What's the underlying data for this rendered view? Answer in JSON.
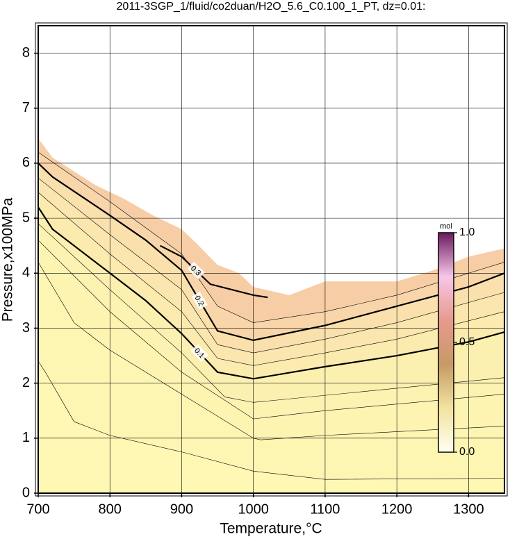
{
  "chart_data": {
    "type": "contour",
    "title": "2011-3SGP_1/fluid/co2duan/H2O_5.6_C0.100_1_PT, dz=0.01:",
    "x_label": "Temperature,°C",
    "y_label": "Pressure,x100MPa",
    "xlim": [
      700,
      1350
    ],
    "ylim": [
      0,
      8.5
    ],
    "xticks": [
      700,
      800,
      900,
      1000,
      1100,
      1200,
      1300
    ],
    "yticks": [
      0,
      1,
      2,
      3,
      4,
      5,
      6,
      7,
      8
    ],
    "grid": true,
    "background": "#ffffff",
    "series": [
      {
        "x": [
          700,
          720,
          750,
          780,
          820,
          860,
          900,
          920,
          950,
          980,
          1000,
          1050,
          1100,
          1200,
          1250,
          1300,
          1350
        ],
        "values": [
          6.45,
          6.1,
          5.85,
          5.6,
          5.35,
          5.05,
          4.8,
          4.55,
          4.15,
          4.0,
          3.75,
          3.6,
          3.85,
          3.85,
          4.05,
          4.3,
          4.45
        ],
        "fill": "#f7cda5"
      },
      {
        "x": [
          700,
          800,
          900,
          950,
          1000,
          1100,
          1200,
          1350
        ],
        "values": [
          6.2,
          5.3,
          4.35,
          3.4,
          3.1,
          3.3,
          3.6,
          4.2
        ],
        "fill": "#f8d6a9",
        "color": "#000000",
        "width": 0.6
      },
      {
        "name": "0.2",
        "x": [
          700,
          720,
          800,
          850,
          900,
          950,
          1000,
          1100,
          1200,
          1300,
          1350
        ],
        "values": [
          6.0,
          5.75,
          5.05,
          4.6,
          4.05,
          2.95,
          2.78,
          3.05,
          3.4,
          3.75,
          4.0
        ],
        "fill": "#f9e0ac",
        "color": "#000000",
        "width": 2.2
      },
      {
        "x": [
          700,
          800,
          900,
          950,
          1000,
          1100,
          1200,
          1350
        ],
        "values": [
          5.73,
          4.7,
          3.7,
          2.7,
          2.55,
          2.8,
          3.1,
          3.65
        ],
        "fill": "#fae6ae",
        "color": "#000000",
        "width": 0.6
      },
      {
        "x": [
          700,
          800,
          900,
          950,
          1000,
          1100,
          1200,
          1350
        ],
        "values": [
          5.47,
          4.35,
          3.3,
          2.45,
          2.32,
          2.55,
          2.8,
          3.3
        ],
        "fill": "#fbebaf",
        "color": "#000000",
        "width": 0.6
      },
      {
        "name": "0.1",
        "x": [
          700,
          720,
          800,
          850,
          900,
          950,
          1000,
          1100,
          1200,
          1300,
          1350
        ],
        "values": [
          5.2,
          4.8,
          4.0,
          3.5,
          2.9,
          2.2,
          2.08,
          2.3,
          2.5,
          2.75,
          2.93
        ],
        "fill": "#fcf0b0",
        "color": "#000000",
        "width": 2.2
      },
      {
        "x": [
          700,
          800,
          900,
          960,
          1000,
          1350
        ],
        "values": [
          4.9,
          3.7,
          2.55,
          1.75,
          1.65,
          2.1
        ],
        "fill": "#fcf2b1",
        "color": "#000000",
        "width": 0.6
      },
      {
        "x": [
          700,
          800,
          900,
          1000,
          1100,
          1350
        ],
        "values": [
          4.6,
          3.3,
          2.2,
          1.35,
          1.5,
          1.8
        ],
        "fill": "#fdf4b2",
        "color": "#000000",
        "width": 0.6
      },
      {
        "x": [
          700,
          750,
          800,
          900,
          1000,
          1010,
          1100,
          1350
        ],
        "values": [
          4.2,
          3.1,
          2.6,
          1.8,
          1.0,
          0.97,
          1.05,
          1.22
        ],
        "fill": "#fdf6b3",
        "color": "#000000",
        "width": 0.6
      },
      {
        "x": [
          700,
          710,
          750,
          800,
          900,
          1000,
          1100,
          1350
        ],
        "values": [
          2.4,
          2.2,
          1.3,
          1.05,
          0.75,
          0.4,
          0.25,
          0.27
        ],
        "fill": "#fef8b4",
        "color": "#000000",
        "width": 0.6
      },
      {
        "name": "0.3",
        "x": [
          870,
          900,
          940,
          1000,
          1020
        ],
        "values": [
          4.5,
          4.3,
          3.8,
          3.6,
          3.56
        ],
        "color": "#000000",
        "width": 2.2
      }
    ],
    "colorbar": {
      "title": "mol",
      "zlim": [
        0,
        1
      ],
      "ticks": [
        {
          "value": 1,
          "label": "1.0"
        },
        {
          "value": 0.5,
          "label": "0.5"
        },
        {
          "value": 0,
          "label": "0.0"
        }
      ],
      "colors": [
        "#fffff0",
        "#f2e3a0",
        "#c79a66",
        "#e79a8c",
        "#f7c6e8",
        "#6a1a5e"
      ]
    }
  }
}
